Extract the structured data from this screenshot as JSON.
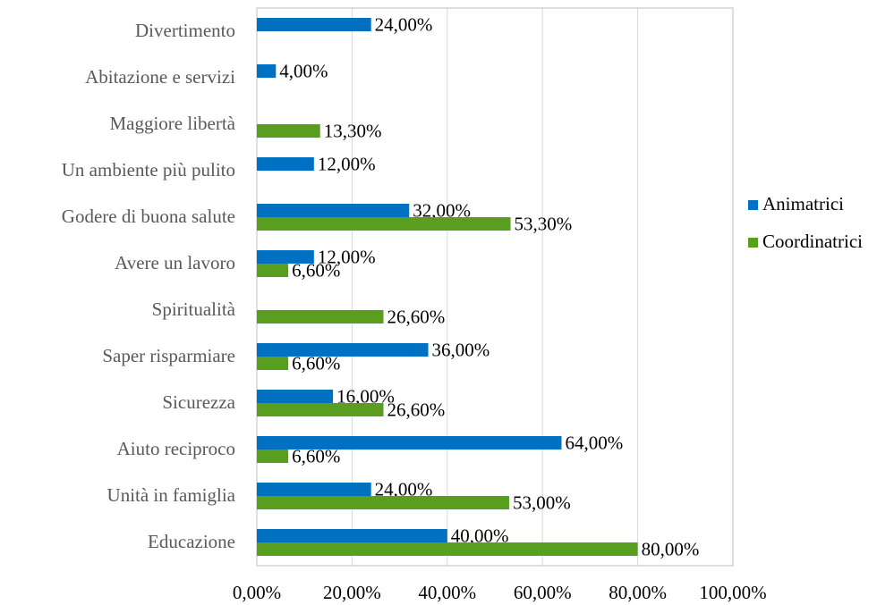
{
  "chart_data": {
    "type": "bar",
    "orientation": "horizontal",
    "categories": [
      "Divertimento",
      "Abitazione e servizi",
      "Maggiore libertà",
      "Un ambiente più pulito",
      "Godere di buona salute",
      "Avere un lavoro",
      "Spiritualità",
      "Saper risparmiare",
      "Sicurezza",
      "Aiuto reciproco",
      "Unità in famiglia",
      "Educazione"
    ],
    "series": [
      {
        "name": "Animatrici",
        "color": "#0070c0",
        "values": [
          24,
          4,
          null,
          12,
          32,
          12,
          null,
          36,
          16,
          64,
          24,
          40
        ],
        "value_labels": [
          "24,00%",
          "4,00%",
          null,
          "12,00%",
          "32,00%",
          "12,00%",
          null,
          "36,00%",
          "16,00%",
          "64,00%",
          "24,00%",
          "40,00%"
        ]
      },
      {
        "name": "Coordinatrici",
        "color": "#5a9e1f",
        "values": [
          null,
          null,
          13.3,
          null,
          53.3,
          6.6,
          26.6,
          6.6,
          26.6,
          6.6,
          53,
          80
        ],
        "value_labels": [
          null,
          null,
          "13,30%",
          null,
          "53,30%",
          "6,60%",
          "26,60%",
          "6,60%",
          "26,60%",
          "6,60%",
          "53,00%",
          "80,00%"
        ]
      }
    ],
    "xlim": [
      0,
      100
    ],
    "xticks": [
      {
        "value": 0,
        "label": "0,00%"
      },
      {
        "value": 20,
        "label": "20,00%"
      },
      {
        "value": 40,
        "label": "40,00%"
      },
      {
        "value": 60,
        "label": "60,00%"
      },
      {
        "value": 80,
        "label": "80,00%"
      },
      {
        "value": 100,
        "label": "100,00%"
      }
    ],
    "grid": true,
    "legend": "right"
  }
}
